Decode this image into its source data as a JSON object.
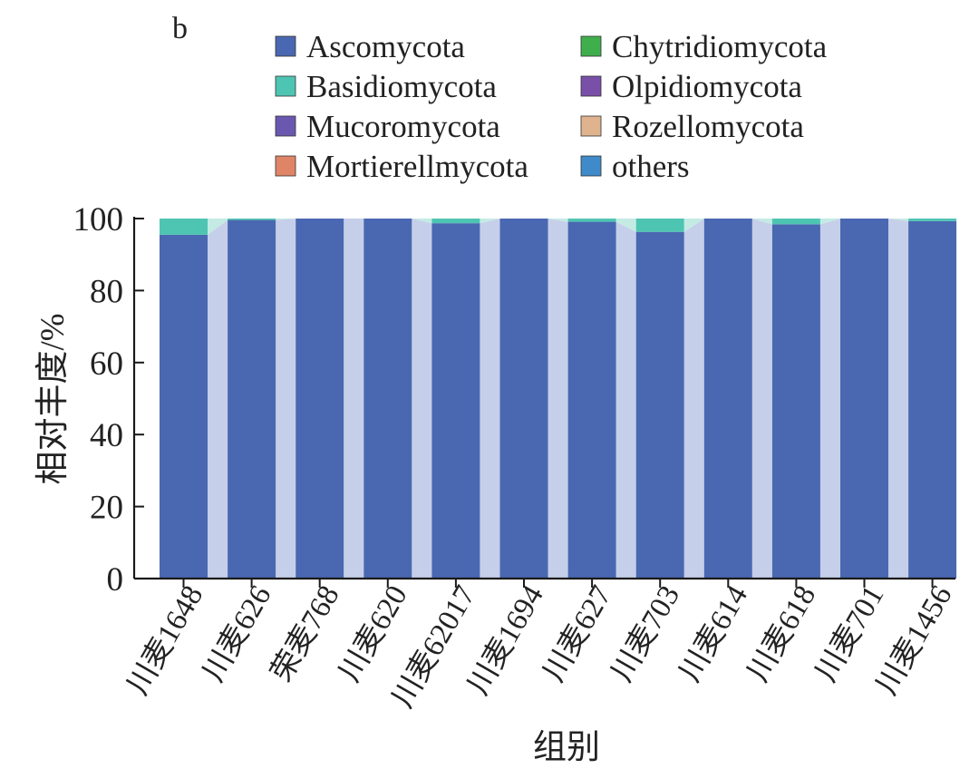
{
  "panel_label": "b",
  "colors": {
    "axis": "#1a1a1a",
    "link_band": "#c6cfe9",
    "link_band_top": "#c3ebe4"
  },
  "legend": [
    {
      "label": "Ascomycota",
      "color": "#4a67b1"
    },
    {
      "label": "Chytridiomycota",
      "color": "#3fae4c"
    },
    {
      "label": "Basidiomycota",
      "color": "#4ec5b2"
    },
    {
      "label": "Olpidiomycota",
      "color": "#7a4fa8"
    },
    {
      "label": "Mucoromycota",
      "color": "#6a58b0"
    },
    {
      "label": "Rozellomycota",
      "color": "#e0b38f"
    },
    {
      "label": "Mortierellmycota",
      "color": "#e08468"
    },
    {
      "label": "others",
      "color": "#3f8ac8"
    }
  ],
  "chart_data": {
    "type": "bar",
    "stacked": true,
    "title": "",
    "xlabel": "组别",
    "ylabel": "相对丰度/%",
    "ylim": [
      0,
      100
    ],
    "yticks": [
      0,
      20,
      40,
      60,
      80,
      100
    ],
    "categories": [
      "川麦1648",
      "川麦626",
      "荣麦768",
      "川麦620",
      "川麦62017",
      "川麦1694",
      "川麦627",
      "川麦703",
      "川麦614",
      "川麦618",
      "川麦701",
      "川麦1456"
    ],
    "series": [
      {
        "name": "Ascomycota",
        "color": "#4a67b1",
        "values": [
          95.5,
          99.6,
          100,
          100,
          98.7,
          100,
          99.1,
          96.3,
          100,
          98.4,
          100,
          99.3
        ]
      },
      {
        "name": "Basidiomycota",
        "color": "#4ec5b2",
        "values": [
          4.5,
          0.4,
          0,
          0,
          1.3,
          0,
          0.9,
          3.7,
          0,
          1.6,
          0,
          0.7
        ]
      }
    ]
  }
}
